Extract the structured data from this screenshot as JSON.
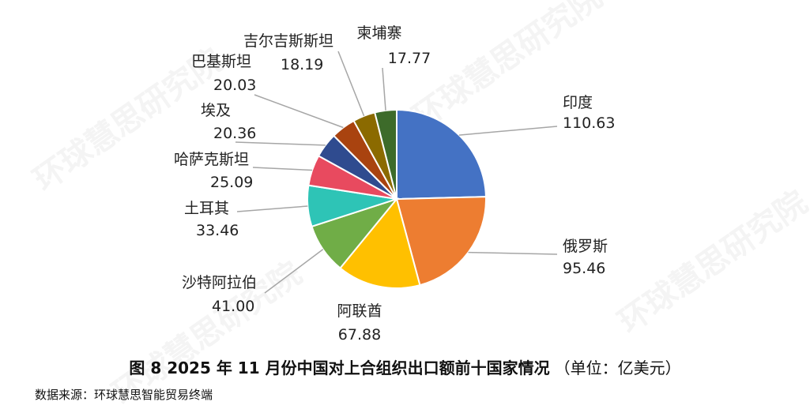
{
  "watermark_text": "环球慧思研究院",
  "caption": {
    "main": "图 8  2025 年 11 月份中国对上合组织出口额前十国家情况",
    "unit": "（单位：亿美元）"
  },
  "source": "数据来源：环球慧思智能贸易终端",
  "chart_data": {
    "type": "pie",
    "title": "图 8  2025 年 11 月份中国对上合组织出口额前十国家情况",
    "unit": "（单位：亿美元）",
    "start_angle_deg": 0,
    "direction": "clockwise",
    "slices": [
      {
        "label": "印度",
        "value": 110.63,
        "value_text": "110.63",
        "color": "#4472C4"
      },
      {
        "label": "俄罗斯",
        "value": 95.46,
        "value_text": "95.46",
        "color": "#ED7D31"
      },
      {
        "label": "阿联酋",
        "value": 67.88,
        "value_text": "67.88",
        "color": "#FFC000"
      },
      {
        "label": "沙特阿拉伯",
        "value": 41.0,
        "value_text": "41.00",
        "color": "#70AD47"
      },
      {
        "label": "土耳其",
        "value": 33.46,
        "value_text": "33.46",
        "color": "#2EC4B6"
      },
      {
        "label": "哈萨克斯坦",
        "value": 25.09,
        "value_text": "25.09",
        "color": "#E84A5F"
      },
      {
        "label": "埃及",
        "value": 20.36,
        "value_text": "20.36",
        "color": "#2F4B8F"
      },
      {
        "label": "巴基斯坦",
        "value": 20.03,
        "value_text": "20.03",
        "color": "#A9430F"
      },
      {
        "label": "吉尔吉斯斯坦",
        "value": 18.19,
        "value_text": "18.19",
        "color": "#8B6A00"
      },
      {
        "label": "柬埔寨",
        "value": 17.77,
        "value_text": "17.77",
        "color": "#3D6B2A"
      }
    ]
  }
}
